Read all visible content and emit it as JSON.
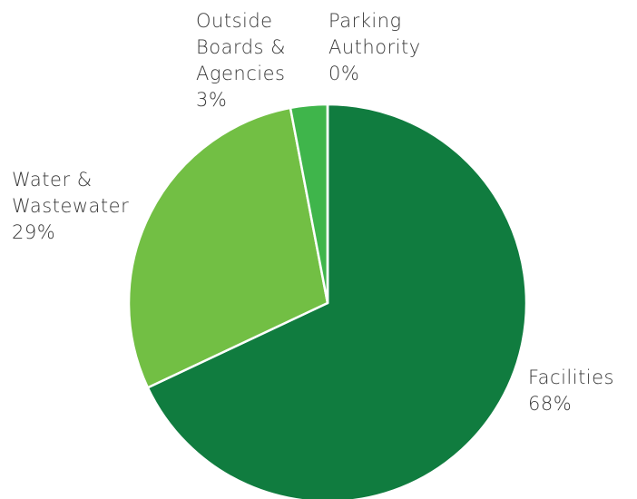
{
  "chart_data": {
    "type": "pie",
    "categories": [
      "Facilities",
      "Water & Wastewater",
      "Outside Boards & Agencies",
      "Parking Authority"
    ],
    "values": [
      68,
      29,
      3,
      0
    ],
    "value_labels": [
      "68%",
      "29%",
      "3%",
      "0%"
    ],
    "colors": [
      "#107c3f",
      "#72bf44",
      "#3fb54b",
      "#2e9e46"
    ]
  }
}
